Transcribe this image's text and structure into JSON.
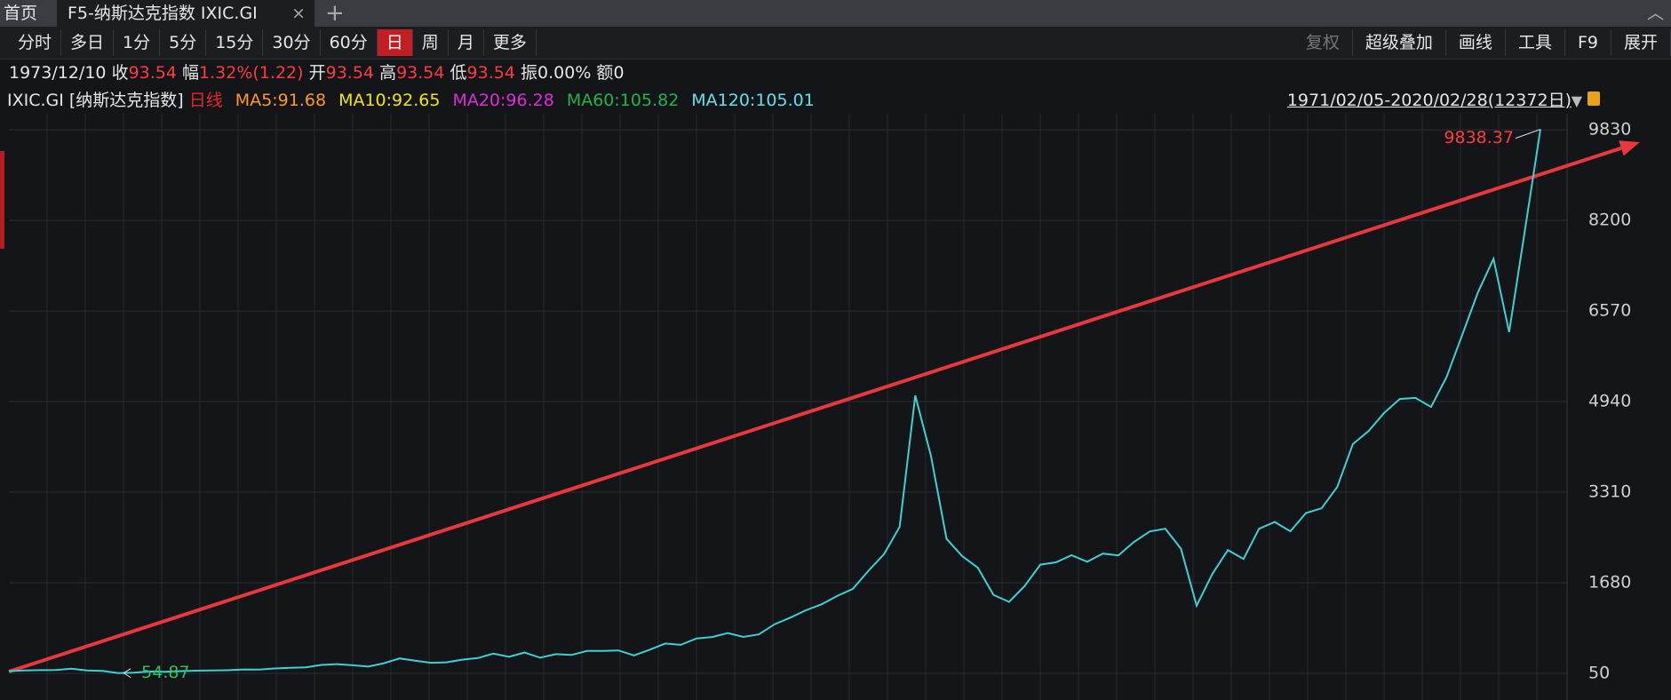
{
  "tabs": {
    "home": "首页",
    "active": "F5-纳斯达克指数 IXIC.GI"
  },
  "toolbar": {
    "periods": [
      "分时",
      "多日",
      "1分",
      "5分",
      "15分",
      "30分",
      "60分",
      "日",
      "周",
      "月",
      "更多"
    ],
    "active_period": "日",
    "tools": [
      "复权",
      "超级叠加",
      "画线",
      "工具",
      "F9",
      "展开"
    ]
  },
  "quote": {
    "date": "1973/12/10",
    "items": [
      {
        "label": "收",
        "value": "93.54",
        "color": "#ff3b3b"
      },
      {
        "label": "幅",
        "value": "1.32%(1.22)",
        "color": "#ff3b3b"
      },
      {
        "label": "开",
        "value": "93.54",
        "color": "#ff3b3b"
      },
      {
        "label": "高",
        "value": "93.54",
        "color": "#ff3b3b"
      },
      {
        "label": "低",
        "value": "93.54",
        "color": "#ff3b3b"
      },
      {
        "label": "振",
        "value": "0.00%",
        "color": "#e6e6e6"
      },
      {
        "label": "额",
        "value": "0",
        "color": "#e6e6e6"
      }
    ]
  },
  "legend": {
    "symbol": "IXIC.GI [纳斯达克指数]",
    "period": "日线",
    "period_color": "#e8262b",
    "ma": [
      {
        "text": "MA5:91.68",
        "color": "#ff9a1f"
      },
      {
        "text": "MA10:92.65",
        "color": "#f2e600"
      },
      {
        "text": "MA20:96.28",
        "color": "#e02bd8"
      },
      {
        "text": "MA60:105.82",
        "color": "#22b24c"
      },
      {
        "text": "MA120:105.01",
        "color": "#5fe3e8"
      }
    ]
  },
  "range": "1971/02/05-2020/02/28(12372日)",
  "chart_data": {
    "type": "line",
    "ylim": [
      -430,
      10120
    ],
    "yticks": [
      50,
      1680,
      3310,
      4940,
      6570,
      8200,
      9830
    ],
    "grid": true,
    "max_label": "9838.37",
    "max_color": "#ff3b3b",
    "min_label": "54.87",
    "min_color": "#2fbf55",
    "series": [
      {
        "color": "#3fd0d0",
        "values": [
          90,
          100,
          107,
          111,
          134,
          101,
          94,
          54.87,
          60,
          83,
          78,
          90,
          97,
          100,
          105,
          120,
          118,
          137,
          151,
          157,
          202,
          215,
          195,
          171,
          232,
          318,
          278,
          239,
          247,
          296,
          325,
          405,
          349,
          424,
          331,
          395,
          381,
          453,
          454,
          462,
          373,
          475,
          586,
          563,
          677,
          703,
          776,
          705,
          751,
          933,
          1052,
          1185,
          1291,
          1442,
          1570,
          1895,
          2193,
          2686,
          5048,
          3966,
          2470,
          2160,
          1950,
          1463,
          1335,
          1622,
          2006,
          2048,
          2175,
          2057,
          2205,
          2172,
          2415,
          2603,
          2652,
          2293,
          1268,
          1835,
          2269,
          2109,
          2652,
          2774,
          2605,
          2935,
          3020,
          3403,
          4176,
          4408,
          4736,
          4987,
          5007,
          4843,
          5383,
          6140,
          6903,
          7510,
          6190,
          8006,
          9838.37
        ]
      }
    ]
  }
}
